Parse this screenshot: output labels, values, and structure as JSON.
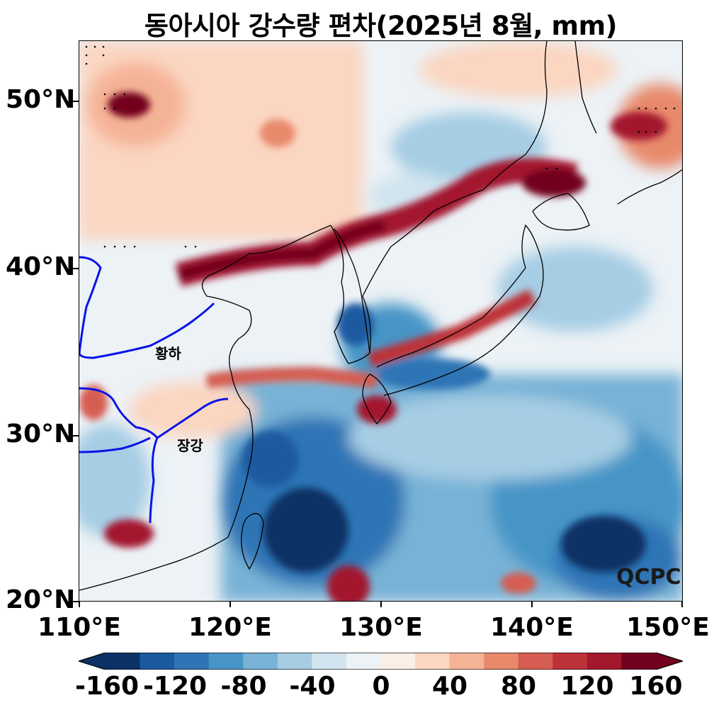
{
  "title": "동아시아 강수량 편차(2025년 8월, mm)",
  "y_axis": {
    "ticks": [
      "50°N",
      "40°N",
      "30°N",
      "20°N"
    ],
    "values": [
      50,
      40,
      30,
      20
    ],
    "range": [
      20,
      53.5
    ]
  },
  "x_axis": {
    "ticks": [
      "110°E",
      "120°E",
      "130°E",
      "140°E",
      "150°E"
    ],
    "values": [
      110,
      120,
      130,
      140,
      150
    ],
    "range": [
      110,
      150
    ]
  },
  "colorbar": {
    "ticks": [
      "-160",
      "-120",
      "-80",
      "-40",
      "0",
      "40",
      "80",
      "120",
      "160"
    ],
    "colors": [
      "#0b3265",
      "#1c5aa0",
      "#2f74b5",
      "#4795c7",
      "#78b2d6",
      "#a6cde4",
      "#d1e4ef",
      "#ecf2f6",
      "#fbeee6",
      "#fbd6c1",
      "#f5b396",
      "#e8896c",
      "#d65d51",
      "#bd3139",
      "#a3182d",
      "#72001f"
    ],
    "extend": "both"
  },
  "annotations": {
    "yellow_river": "황하",
    "yangtze_river": "장강",
    "watermark": "QCPC"
  }
}
